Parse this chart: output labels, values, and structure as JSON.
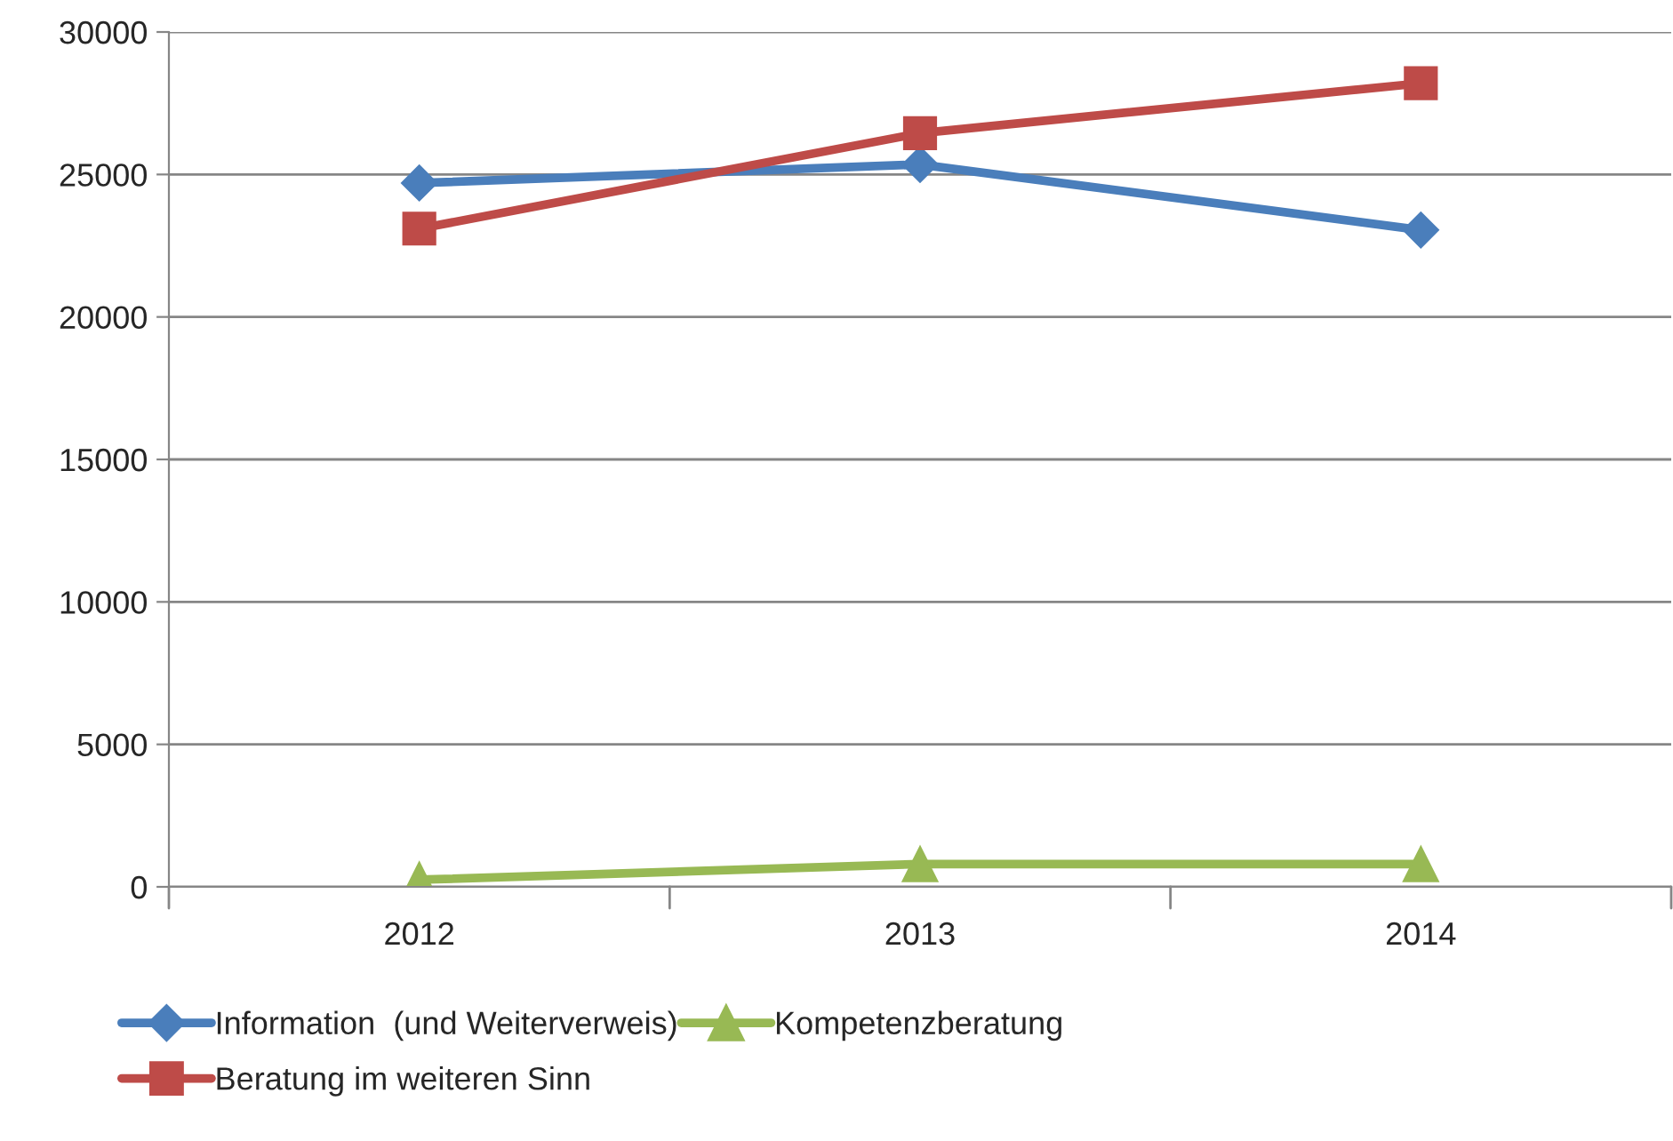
{
  "chart_data": {
    "type": "line",
    "categories": [
      "2012",
      "2013",
      "2014"
    ],
    "series": [
      {
        "name": "Information  (und Weiterverweis)",
        "color": "#4a7ebb",
        "values": [
          24700,
          25350,
          23050
        ],
        "marker": "diamond"
      },
      {
        "name": "Beratung im weiteren Sinn",
        "color": "#be4b48",
        "values": [
          23100,
          26450,
          28200
        ],
        "marker": "square"
      },
      {
        "name": "Kompetenzberatung",
        "color": "#98b954",
        "values": [
          250,
          800,
          800
        ],
        "marker": "triangle"
      }
    ],
    "ylim": [
      0,
      30000
    ],
    "yticks": [
      0,
      5000,
      10000,
      15000,
      20000,
      25000,
      30000
    ],
    "grid": "y",
    "legend": "bottom",
    "line_style": "solid"
  }
}
